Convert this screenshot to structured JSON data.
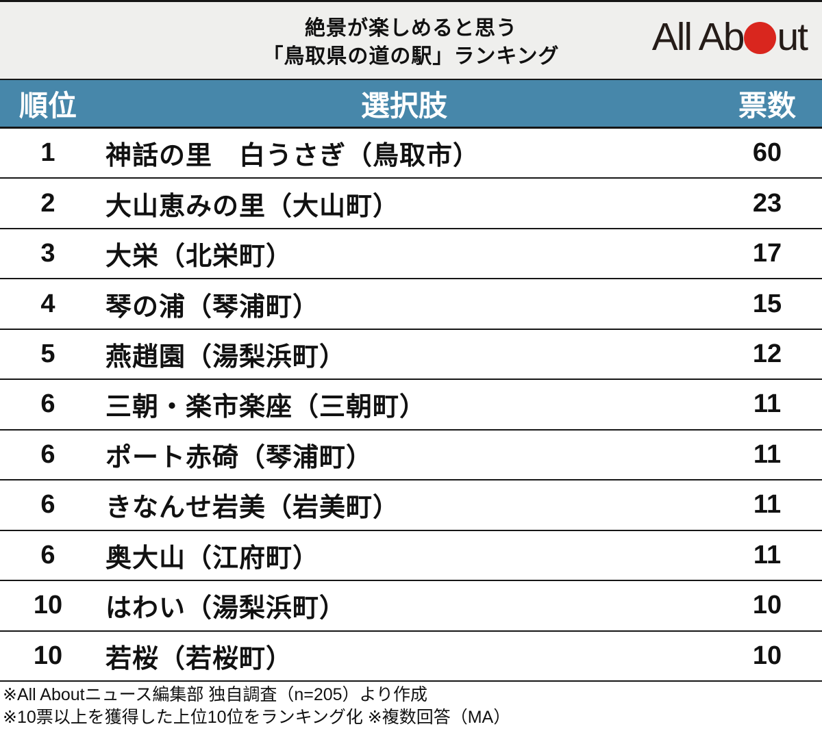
{
  "header": {
    "title_line1": "絶景が楽しめると思う",
    "title_line2": "「鳥取県の道の駅」ランキング",
    "logo": {
      "part1": "All Ab",
      "part2": "ut",
      "dot_icon": "red-circle"
    }
  },
  "table": {
    "columns": {
      "rank": "順位",
      "choice": "選択肢",
      "votes": "票数"
    },
    "rows": [
      {
        "rank": "1",
        "choice": "神話の里　白うさぎ（鳥取市）",
        "votes": "60"
      },
      {
        "rank": "2",
        "choice": "大山恵みの里（大山町）",
        "votes": "23"
      },
      {
        "rank": "3",
        "choice": "大栄（北栄町）",
        "votes": "17"
      },
      {
        "rank": "4",
        "choice": "琴の浦（琴浦町）",
        "votes": "15"
      },
      {
        "rank": "5",
        "choice": "燕趙園（湯梨浜町）",
        "votes": "12"
      },
      {
        "rank": "6",
        "choice": "三朝・楽市楽座（三朝町）",
        "votes": "11"
      },
      {
        "rank": "6",
        "choice": "ポート赤碕（琴浦町）",
        "votes": "11"
      },
      {
        "rank": "6",
        "choice": "きなんせ岩美（岩美町）",
        "votes": "11"
      },
      {
        "rank": "6",
        "choice": "奥大山（江府町）",
        "votes": "11"
      },
      {
        "rank": "10",
        "choice": "はわい（湯梨浜町）",
        "votes": "10"
      },
      {
        "rank": "10",
        "choice": "若桜（若桜町）",
        "votes": "10"
      }
    ]
  },
  "footer": {
    "note1": "※All Aboutニュース編集部 独自調査（n=205）より作成",
    "note2": "※10票以上を獲得した上位10位をランキング化 ※複数回答（MA）"
  },
  "colors": {
    "header_bg": "#efefed",
    "accent_blue": "#4787aa",
    "logo_red": "#d9261e",
    "border_black": "#161616"
  },
  "chart_data": {
    "type": "table",
    "title": "絶景が楽しめると思う「鳥取県の道の駅」ランキング",
    "columns": [
      "順位",
      "選択肢",
      "票数"
    ],
    "categories": [
      "神話の里　白うさぎ（鳥取市）",
      "大山恵みの里（大山町）",
      "大栄（北栄町）",
      "琴の浦（琴浦町）",
      "燕趙園（湯梨浜町）",
      "三朝・楽市楽座（三朝町）",
      "ポート赤碕（琴浦町）",
      "きなんせ岩美（岩美町）",
      "奥大山（江府町）",
      "はわい（湯梨浜町）",
      "若桜（若桜町）"
    ],
    "ranks": [
      1,
      2,
      3,
      4,
      5,
      6,
      6,
      6,
      6,
      10,
      10
    ],
    "values": [
      60,
      23,
      17,
      15,
      12,
      11,
      11,
      11,
      11,
      10,
      10
    ],
    "source_note": "All Aboutニュース編集部 独自調査（n=205）"
  }
}
